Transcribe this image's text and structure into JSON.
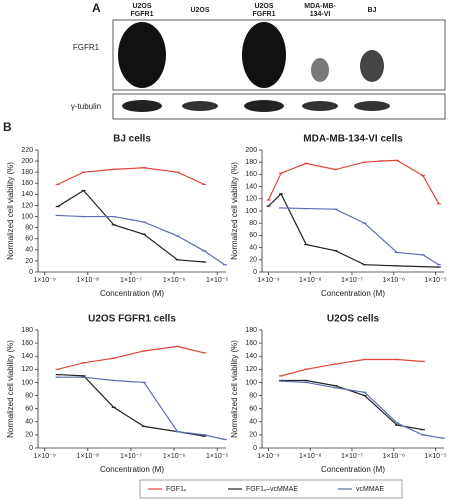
{
  "panel_a": {
    "label": "A",
    "lanes": [
      [
        "U2OS",
        "FGFR1"
      ],
      [
        "U2OS"
      ],
      [
        "U2OS",
        "FGFR1"
      ],
      [
        "MDA-MB-",
        "134-VI"
      ],
      [
        "BJ"
      ]
    ],
    "rows": [
      "FGFR1",
      "γ-tubulin"
    ]
  },
  "panel_b": {
    "label": "B"
  },
  "chart_data": [
    {
      "type": "line",
      "title": "BJ cells",
      "x_label": "Concentration (M)",
      "y_label": "Normalized cell viability (%)",
      "log_x": true,
      "grid": false,
      "legend": "bottom",
      "xlim": [
        7e-10,
        1.6e-05
      ],
      "xticks": [
        {
          "value": 1e-09,
          "label": "1×10⁻⁹"
        },
        {
          "value": 1e-08,
          "label": "1×10⁻⁸"
        },
        {
          "value": 1e-07,
          "label": "1×10⁻⁷"
        },
        {
          "value": 1e-06,
          "label": "1×10⁻⁶"
        },
        {
          "value": 1e-05,
          "label": "1×10⁻⁵"
        }
      ],
      "ylim": [
        0,
        220
      ],
      "yticks": [
        0,
        20,
        40,
        60,
        80,
        100,
        120,
        140,
        160,
        180,
        200,
        220
      ],
      "series": [
        {
          "name": "FGF1ᵥ",
          "color": "#e0443c",
          "x": [
            2e-09,
            8e-09,
            4e-08,
            2e-07,
            1.2e-06,
            5e-06
          ],
          "values": [
            158,
            180,
            185,
            188,
            180,
            158
          ]
        },
        {
          "name": "FGF1ᵥ–vcMMAE",
          "color": "#222222",
          "x": [
            2e-09,
            8e-09,
            4e-08,
            2e-07,
            1.2e-06,
            5e-06
          ],
          "values": [
            118,
            147,
            85,
            68,
            22,
            18
          ]
        },
        {
          "name": "vcMMAE",
          "color": "#5b6fb0",
          "x": [
            2e-09,
            8e-09,
            4e-08,
            2e-07,
            1.2e-06,
            5e-06,
            1.5e-05
          ],
          "values": [
            102,
            100,
            100,
            90,
            65,
            38,
            13
          ]
        }
      ]
    },
    {
      "type": "line",
      "title": "MDA-MB-134-VI cells",
      "x_label": "Concentration (M)",
      "y_label": "Normalized cell viability (%)",
      "log_x": true,
      "grid": false,
      "xlim": [
        7e-10,
        1.6e-05
      ],
      "xticks": [
        {
          "value": 1e-09,
          "label": "1×10⁻⁹"
        },
        {
          "value": 1e-08,
          "label": "1×10⁻⁸"
        },
        {
          "value": 1e-07,
          "label": "1×10⁻⁷"
        },
        {
          "value": 1e-06,
          "label": "1×10⁻⁶"
        },
        {
          "value": 1e-05,
          "label": "1×10⁻⁵"
        }
      ],
      "ylim": [
        0,
        200
      ],
      "yticks": [
        0,
        20,
        40,
        60,
        80,
        100,
        120,
        140,
        160,
        180,
        200
      ],
      "series": [
        {
          "name": "FGF1ᵥ",
          "color": "#e0443c",
          "x": [
            1e-09,
            2e-09,
            8e-09,
            4e-08,
            2e-07,
            5e-07,
            1.2e-06,
            5e-06,
            1.2e-05
          ],
          "values": [
            118,
            162,
            178,
            168,
            180,
            182,
            183,
            158,
            112
          ]
        },
        {
          "name": "FGF1ᵥ–vcMMAE",
          "color": "#222222",
          "x": [
            1e-09,
            2e-09,
            8e-09,
            4e-08,
            2e-07,
            1.2e-06,
            1.2e-05
          ],
          "values": [
            108,
            128,
            45,
            35,
            12,
            10,
            8
          ]
        },
        {
          "name": "vcMMAE",
          "color": "#5b6fb0",
          "x": [
            2e-09,
            8e-09,
            4e-08,
            2e-07,
            1.2e-06,
            5e-06,
            1.2e-05
          ],
          "values": [
            105,
            104,
            103,
            80,
            32,
            28,
            12
          ]
        }
      ]
    },
    {
      "type": "line",
      "title": "U2OS FGFR1 cells",
      "x_label": "Concentration (M)",
      "y_label": "Normalized cell viability (%)",
      "log_x": true,
      "grid": false,
      "xlim": [
        7e-10,
        1.6e-05
      ],
      "xticks": [
        {
          "value": 1e-09,
          "label": "1×10⁻⁹"
        },
        {
          "value": 1e-08,
          "label": "1×10⁻⁸"
        },
        {
          "value": 1e-07,
          "label": "1×10⁻⁷"
        },
        {
          "value": 1e-06,
          "label": "1×10⁻⁶"
        },
        {
          "value": 1e-05,
          "label": "1×10⁻⁵"
        }
      ],
      "ylim": [
        0,
        180
      ],
      "yticks": [
        0,
        20,
        40,
        60,
        80,
        100,
        120,
        140,
        160,
        180
      ],
      "series": [
        {
          "name": "FGF1ᵥ",
          "color": "#e0443c",
          "x": [
            2e-09,
            8e-09,
            4e-08,
            2e-07,
            1.2e-06,
            5e-06
          ],
          "values": [
            120,
            130,
            137,
            148,
            155,
            145
          ]
        },
        {
          "name": "FGF1ᵥ–vcMMAE",
          "color": "#222222",
          "x": [
            2e-09,
            8e-09,
            4e-08,
            2e-07,
            1.2e-06,
            5e-06
          ],
          "values": [
            112,
            110,
            62,
            33,
            25,
            18
          ]
        },
        {
          "name": "vcMMAE",
          "color": "#5b6fb0",
          "x": [
            2e-09,
            8e-09,
            4e-08,
            2e-07,
            1.2e-06,
            5e-06,
            1.5e-05
          ],
          "values": [
            108,
            108,
            103,
            100,
            25,
            20,
            13
          ]
        }
      ]
    },
    {
      "type": "line",
      "title": "U2OS cells",
      "x_label": "Concentration (M)",
      "y_label": "Normalized cell viability (%)",
      "log_x": true,
      "grid": false,
      "xlim": [
        7e-10,
        1.6e-05
      ],
      "xticks": [
        {
          "value": 1e-09,
          "label": "1×10⁻⁹"
        },
        {
          "value": 1e-08,
          "label": "1×10⁻⁸"
        },
        {
          "value": 1e-07,
          "label": "1×10⁻⁷"
        },
        {
          "value": 1e-06,
          "label": "1×10⁻⁶"
        },
        {
          "value": 1e-05,
          "label": "1×10⁻⁵"
        }
      ],
      "ylim": [
        0,
        180
      ],
      "yticks": [
        0,
        20,
        40,
        60,
        80,
        100,
        120,
        140,
        160,
        180
      ],
      "series": [
        {
          "name": "FGF1ᵥ",
          "color": "#e0443c",
          "x": [
            2e-09,
            8e-09,
            4e-08,
            2e-07,
            1.2e-06,
            5e-06
          ],
          "values": [
            110,
            120,
            128,
            135,
            135,
            132
          ]
        },
        {
          "name": "FGF1ᵥ–vcMMAE",
          "color": "#222222",
          "x": [
            2e-09,
            8e-09,
            4e-08,
            2e-07,
            1.2e-06,
            5e-06
          ],
          "values": [
            103,
            103,
            95,
            80,
            35,
            28
          ]
        },
        {
          "name": "vcMMAE",
          "color": "#5b6fb0",
          "x": [
            2e-09,
            8e-09,
            4e-08,
            2e-07,
            1.2e-06,
            5e-06,
            1.5e-05
          ],
          "values": [
            102,
            100,
            92,
            85,
            38,
            20,
            15
          ]
        }
      ]
    }
  ]
}
